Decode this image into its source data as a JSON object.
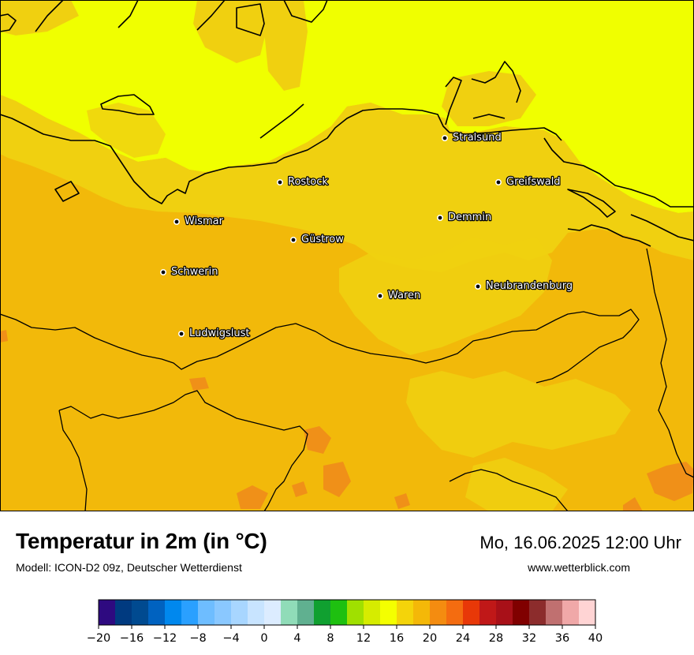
{
  "map": {
    "cities": [
      {
        "name": "Stralsund"
      },
      {
        "name": "Rostock"
      },
      {
        "name": "Greifswald"
      },
      {
        "name": "Wismar"
      },
      {
        "name": "Demmin"
      },
      {
        "name": "Güstrow"
      },
      {
        "name": "Schwerin"
      },
      {
        "name": "Neubrandenburg"
      },
      {
        "name": "Waren"
      },
      {
        "name": "Ludwigslust"
      }
    ],
    "colors": {
      "sea": "#f0ff00",
      "land_warm": "#f2b90a",
      "land_mild": "#f0d010",
      "hot_spots": "#f09018",
      "border": "#000000"
    }
  },
  "footer": {
    "title": "Temperatur in 2m (in °C)",
    "subtitle": "Modell: ICON-D2 09z, Deutscher Wetterdienst",
    "datetime": "Mo, 16.06.2025 12:00 Uhr",
    "website": "www.wetterblick.com"
  },
  "colorbar": {
    "unit": "°C",
    "min": -20,
    "max": 40,
    "step": 2,
    "tick_labels": [
      "−20",
      "−16",
      "−12",
      "−8",
      "−4",
      "0",
      "4",
      "8",
      "12",
      "16",
      "20",
      "24",
      "28",
      "32",
      "36",
      "40"
    ],
    "colors": [
      "#2e0a80",
      "#003a80",
      "#004a90",
      "#0062c0",
      "#0088ee",
      "#2aa0ff",
      "#6ebdff",
      "#8ac8ff",
      "#a8d6ff",
      "#c8e4ff",
      "#dcecff",
      "#90dcb8",
      "#60b090",
      "#10a030",
      "#1ec010",
      "#a0e000",
      "#d6ec00",
      "#f4ff00",
      "#f4d40a",
      "#f4b808",
      "#f48c10",
      "#f46c10",
      "#e83808",
      "#c01818",
      "#a81018",
      "#800000",
      "#8c2c2c",
      "#c07070",
      "#f0a8a8",
      "#ffd4d4"
    ]
  }
}
